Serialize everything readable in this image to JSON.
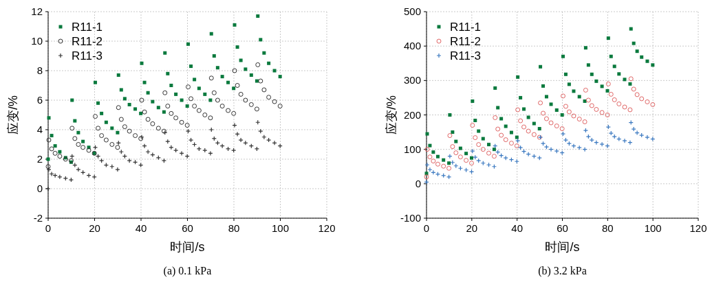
{
  "chart_data": [
    {
      "type": "scatter",
      "xlabel": "时间/s",
      "ylabel": "应变/%",
      "annotations": [
        "(a) 0.1 kPa"
      ],
      "x": [
        0,
        0.3,
        1.5,
        3,
        5,
        7.5,
        9.9,
        10.3,
        11.5,
        13,
        15,
        17.5,
        19.9,
        20.3,
        21.5,
        23,
        25,
        27.5,
        29.9,
        30.3,
        31.5,
        33,
        35,
        37.5,
        39.9,
        40.3,
        41.5,
        43,
        45,
        47.5,
        49.9,
        50.3,
        51.5,
        53,
        55,
        57.5,
        59.9,
        60.3,
        61.5,
        63,
        65,
        67.5,
        69.9,
        70.3,
        71.5,
        73,
        75,
        77.5,
        79.9,
        80.3,
        81.5,
        83,
        85,
        87.5,
        89.9,
        90.3,
        91.5,
        93,
        95,
        97.5,
        99.9
      ],
      "xlim": [
        0,
        120
      ],
      "xticks": [
        0,
        20,
        40,
        60,
        80,
        100,
        120
      ],
      "ylim": [
        -2,
        12
      ],
      "yticks": [
        -2,
        0,
        2,
        4,
        6,
        8,
        10,
        12
      ],
      "grid": true,
      "legend": "top left",
      "series": [
        {
          "name": "R11-1",
          "color": "#0b7a3e",
          "marker": "square",
          "values": [
            2.0,
            4.8,
            3.6,
            2.9,
            2.5,
            2.1,
            1.8,
            6.0,
            4.6,
            3.8,
            3.2,
            2.8,
            2.4,
            7.2,
            5.8,
            5.1,
            4.5,
            4.1,
            3.8,
            7.7,
            6.7,
            6.1,
            5.7,
            5.4,
            5.1,
            8.5,
            7.2,
            6.5,
            5.9,
            5.5,
            5.2,
            9.2,
            7.8,
            7.0,
            6.4,
            6.0,
            5.6,
            9.8,
            8.3,
            7.4,
            6.8,
            6.4,
            6.0,
            10.5,
            9.0,
            8.2,
            7.6,
            7.2,
            6.8,
            11.1,
            9.6,
            8.7,
            8.1,
            7.7,
            7.3,
            11.7,
            10.1,
            9.2,
            8.5,
            8.0,
            7.6
          ]
        },
        {
          "name": "R11-2",
          "color": "#333333",
          "marker": "circle",
          "values": [
            1.5,
            3.3,
            2.7,
            2.4,
            2.2,
            2.0,
            1.9,
            4.1,
            3.4,
            3.0,
            2.8,
            2.6,
            2.4,
            4.9,
            4.1,
            3.6,
            3.3,
            3.0,
            2.8,
            5.5,
            4.7,
            4.2,
            3.9,
            3.6,
            3.4,
            6.0,
            5.2,
            4.7,
            4.4,
            4.1,
            3.9,
            6.5,
            5.6,
            5.1,
            4.8,
            4.5,
            4.3,
            6.9,
            6.1,
            5.6,
            5.3,
            5.0,
            4.8,
            7.5,
            6.5,
            6.0,
            5.6,
            5.3,
            5.1,
            8.0,
            7.0,
            6.4,
            6.0,
            5.7,
            5.4,
            8.4,
            7.3,
            6.7,
            6.2,
            5.9,
            5.6
          ]
        },
        {
          "name": "R11-3",
          "color": "#333333",
          "marker": "cross",
          "values": [
            0,
            1.3,
            1.0,
            0.9,
            0.8,
            0.7,
            0.6,
            2.2,
            1.6,
            1.3,
            1.1,
            0.9,
            0.8,
            2.8,
            2.2,
            1.9,
            1.6,
            1.5,
            1.3,
            3.1,
            2.5,
            2.2,
            1.9,
            1.8,
            1.6,
            3.5,
            2.9,
            2.5,
            2.3,
            2.1,
            1.9,
            3.8,
            3.2,
            2.8,
            2.6,
            2.4,
            2.2,
            3.9,
            3.3,
            3.0,
            2.7,
            2.6,
            2.4,
            4.0,
            3.4,
            3.1,
            2.9,
            2.7,
            2.6,
            4.3,
            3.7,
            3.3,
            3.1,
            2.9,
            2.7,
            4.5,
            3.9,
            3.5,
            3.3,
            3.1,
            2.9
          ]
        }
      ]
    },
    {
      "type": "scatter",
      "xlabel": "时间/s",
      "ylabel": "应变/%",
      "annotations": [
        "(b) 3.2 kPa"
      ],
      "x": [
        0,
        0.3,
        1.5,
        3,
        5,
        7.5,
        9.9,
        10.3,
        11.5,
        13,
        15,
        17.5,
        19.9,
        20.3,
        21.5,
        23,
        25,
        27.5,
        29.9,
        30.3,
        31.5,
        33,
        35,
        37.5,
        39.9,
        40.3,
        41.5,
        43,
        45,
        47.5,
        49.9,
        50.3,
        51.5,
        53,
        55,
        57.5,
        59.9,
        60.3,
        61.5,
        63,
        65,
        67.5,
        69.9,
        70.3,
        71.5,
        73,
        75,
        77.5,
        79.9,
        80.3,
        81.5,
        83,
        85,
        87.5,
        89.9,
        90.3,
        91.5,
        93,
        95,
        97.5,
        99.9
      ],
      "xlim": [
        0,
        120
      ],
      "xticks": [
        0,
        20,
        40,
        60,
        80,
        100,
        120
      ],
      "ylim": [
        -100,
        500
      ],
      "yticks": [
        -100,
        0,
        100,
        200,
        300,
        400,
        500
      ],
      "grid": true,
      "legend": "top left",
      "series": [
        {
          "name": "R11-1",
          "color": "#0b7a3e",
          "marker": "square",
          "values": [
            30,
            145,
            111,
            92,
            79,
            69,
            60,
            200,
            150,
            123,
            103,
            88,
            75,
            240,
            184,
            153,
            131,
            114,
            100,
            278,
            221,
            189,
            167,
            149,
            135,
            310,
            250,
            217,
            193,
            175,
            160,
            340,
            284,
            253,
            231,
            214,
            200,
            370,
            318,
            289,
            269,
            253,
            240,
            395,
            345,
            318,
            298,
            283,
            270,
            423,
            370,
            341,
            319,
            303,
            290,
            450,
            408,
            385,
            368,
            356,
            345
          ]
        },
        {
          "name": "R11-2",
          "color": "#e06666",
          "marker": "circle",
          "values": [
            20,
            100,
            78,
            66,
            57,
            51,
            45,
            140,
            108,
            90,
            78,
            68,
            60,
            170,
            134,
            114,
            100,
            89,
            80,
            192,
            159,
            141,
            128,
            118,
            110,
            215,
            183,
            165,
            153,
            143,
            135,
            235,
            205,
            189,
            177,
            168,
            160,
            255,
            225,
            209,
            197,
            188,
            180,
            272,
            243,
            227,
            216,
            207,
            200,
            290,
            260,
            244,
            232,
            223,
            215,
            305,
            275,
            259,
            247,
            238,
            230
          ]
        },
        {
          "name": "R11-3",
          "color": "#3a78c0",
          "marker": "cross",
          "values": [
            5,
            55,
            41,
            33,
            28,
            24,
            20,
            80,
            62,
            52,
            45,
            40,
            35,
            95,
            77,
            67,
            60,
            55,
            50,
            110,
            92,
            82,
            75,
            70,
            65,
            125,
            105,
            94,
            86,
            80,
            75,
            135,
            117,
            107,
            100,
            95,
            90,
            145,
            127,
            117,
            110,
            105,
            100,
            155,
            137,
            127,
            120,
            115,
            110,
            165,
            147,
            137,
            130,
            125,
            120,
            178,
            159,
            148,
            141,
            135,
            130
          ]
        }
      ]
    }
  ]
}
